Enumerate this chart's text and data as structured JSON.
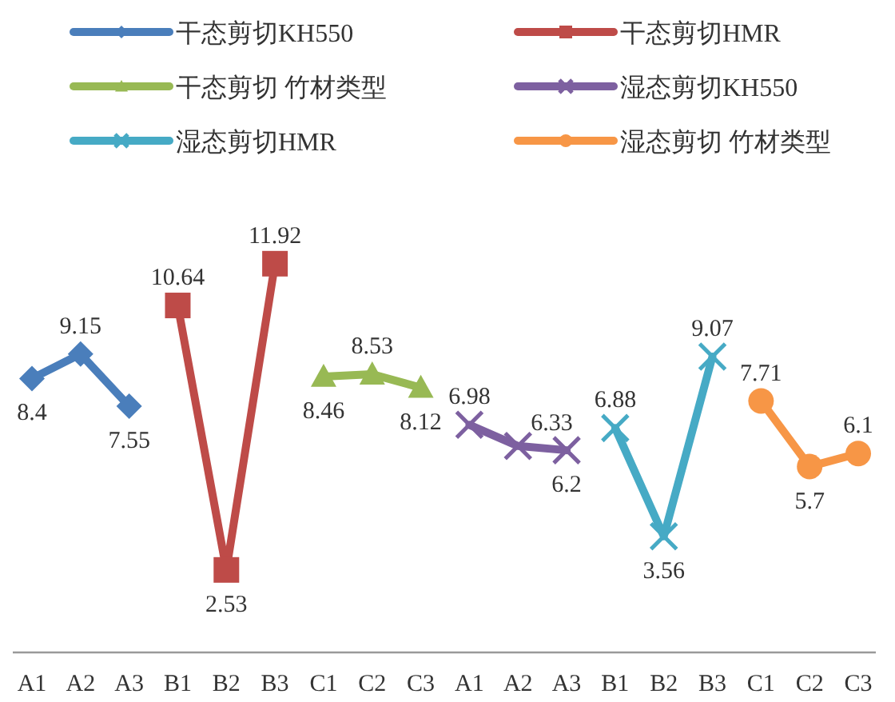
{
  "chart_data": {
    "type": "line",
    "categories": [
      "A1",
      "A2",
      "A3",
      "B1",
      "B2",
      "B3",
      "C1",
      "C2",
      "C3",
      "A1",
      "A2",
      "A3",
      "B1",
      "B2",
      "B3",
      "C1",
      "C2",
      "C3"
    ],
    "series": [
      {
        "name": "干态剪切KH550",
        "color": "#4a7ebb",
        "marker": "diamond",
        "values": [
          8.4,
          9.15,
          7.55,
          null,
          null,
          null,
          null,
          null,
          null,
          null,
          null,
          null,
          null,
          null,
          null,
          null,
          null,
          null
        ]
      },
      {
        "name": "干态剪切HMR",
        "color": "#be4b48",
        "marker": "square",
        "values": [
          null,
          null,
          null,
          10.64,
          2.53,
          11.92,
          null,
          null,
          null,
          null,
          null,
          null,
          null,
          null,
          null,
          null,
          null,
          null
        ]
      },
      {
        "name": "干态剪切  竹材类型",
        "color": "#98b954",
        "marker": "triangle",
        "values": [
          null,
          null,
          null,
          null,
          null,
          null,
          8.46,
          8.53,
          8.12,
          null,
          null,
          null,
          null,
          null,
          null,
          null,
          null,
          null
        ]
      },
      {
        "name": "湿态剪切KH550",
        "color": "#7d60a0",
        "marker": "cross",
        "values": [
          null,
          null,
          null,
          null,
          null,
          null,
          null,
          null,
          null,
          6.98,
          6.33,
          6.2,
          null,
          null,
          null,
          null,
          null,
          null
        ]
      },
      {
        "name": "湿态剪切HMR",
        "color": "#46aac5",
        "marker": "cross",
        "values": [
          null,
          null,
          null,
          null,
          null,
          null,
          null,
          null,
          null,
          null,
          null,
          null,
          6.88,
          3.56,
          9.07,
          null,
          null,
          null
        ]
      },
      {
        "name": "湿态剪切  竹材类型",
        "color": "#f79646",
        "marker": "circle",
        "values": [
          null,
          null,
          null,
          null,
          null,
          null,
          null,
          null,
          null,
          null,
          null,
          null,
          null,
          null,
          null,
          7.71,
          5.7,
          6.1
        ]
      }
    ],
    "data_labels": true,
    "legend": "top"
  }
}
